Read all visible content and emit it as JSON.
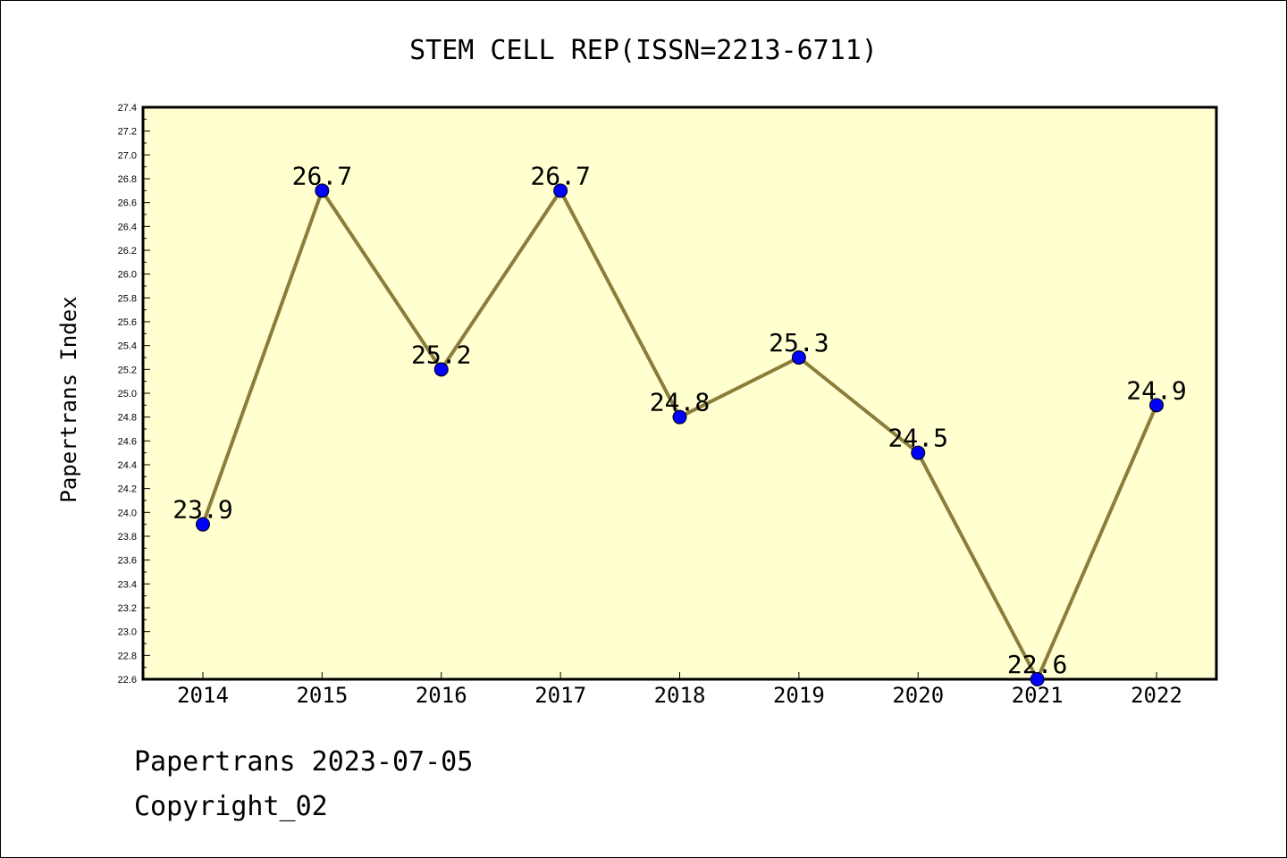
{
  "chart_data": {
    "type": "line",
    "title": "STEM CELL REP(ISSN=2213-6711)",
    "xlabel": "",
    "ylabel": "Papertrans Index",
    "categories": [
      "2014",
      "2015",
      "2016",
      "2017",
      "2018",
      "2019",
      "2020",
      "2021",
      "2022"
    ],
    "series": [
      {
        "values": [
          23.9,
          26.7,
          25.2,
          26.7,
          24.8,
          25.3,
          24.5,
          22.6,
          24.9
        ],
        "data_labels": [
          "23.9",
          "26.7",
          "25.2",
          "26.7",
          "24.8",
          "25.3",
          "24.5",
          "22.6",
          "24.9"
        ]
      }
    ],
    "ylim": [
      22.6,
      27.4
    ],
    "yticks": [
      "22.6",
      "22.8",
      "23.0",
      "23.2",
      "23.4",
      "23.6",
      "23.8",
      "24.0",
      "24.2",
      "24.4",
      "24.6",
      "24.8",
      "25.0",
      "25.2",
      "25.4",
      "25.6",
      "25.8",
      "26.0",
      "26.2",
      "26.4",
      "26.6",
      "26.8",
      "27.0",
      "27.2",
      "27.4"
    ],
    "grid": false,
    "colors": {
      "plot_background": "#ffffd0",
      "line": "#8b7d3a",
      "marker": "#0000ff"
    }
  },
  "footer": {
    "line1": "Papertrans 2023-07-05",
    "line2": "Copyright_02"
  }
}
